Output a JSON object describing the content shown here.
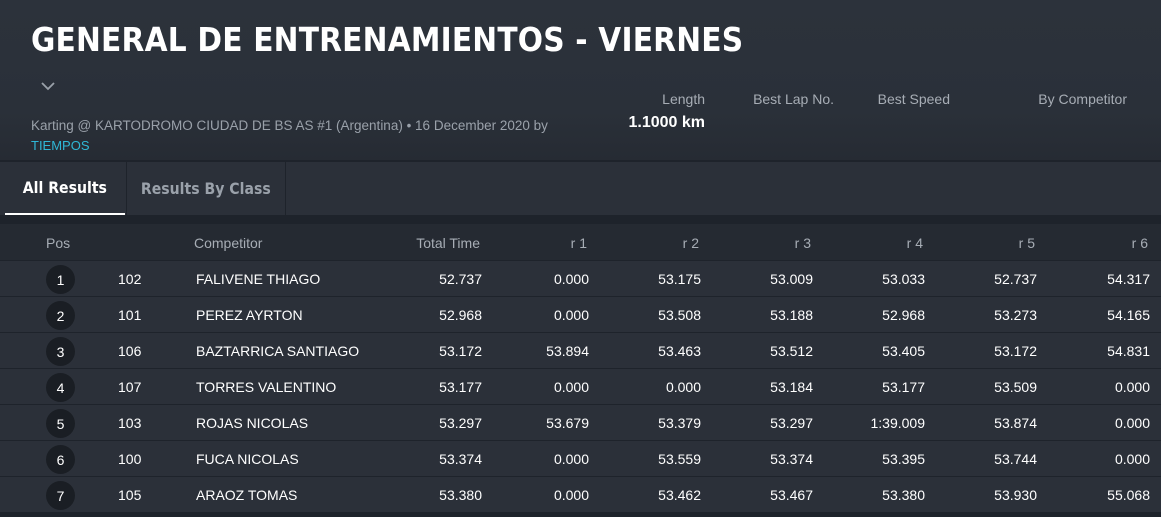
{
  "header": {
    "title": "GENERAL DE ENTRENAMIENTOS - VIERNES",
    "meta": "Karting @ KARTODROMO CIUDAD DE BS AS #1 (Argentina) • 16 December 2020 by",
    "organizer": "TIEMPOS",
    "stats": [
      {
        "label": "Length",
        "value": "1.1000 km"
      },
      {
        "label": "Best Lap No.",
        "value": ""
      },
      {
        "label": "Best Speed",
        "value": ""
      },
      {
        "label": "By Competitor",
        "value": ""
      }
    ]
  },
  "tabs": [
    {
      "label": "All Results",
      "active": true
    },
    {
      "label": "Results By Class",
      "active": false
    }
  ],
  "table": {
    "columns": [
      "Pos",
      "Competitor",
      "Total Time",
      "r 1",
      "r 2",
      "r 3",
      "r 4",
      "r 5",
      "r 6"
    ],
    "rows": [
      {
        "pos": "1",
        "no": "102",
        "name": "FALIVENE THIAGO",
        "total": "52.737",
        "r": [
          "0.000",
          "53.175",
          "53.009",
          "53.033",
          "52.737",
          "54.317"
        ]
      },
      {
        "pos": "2",
        "no": "101",
        "name": "PEREZ AYRTON",
        "total": "52.968",
        "r": [
          "0.000",
          "53.508",
          "53.188",
          "52.968",
          "53.273",
          "54.165"
        ]
      },
      {
        "pos": "3",
        "no": "106",
        "name": "BAZTARRICA SANTIAGO",
        "total": "53.172",
        "r": [
          "53.894",
          "53.463",
          "53.512",
          "53.405",
          "53.172",
          "54.831"
        ]
      },
      {
        "pos": "4",
        "no": "107",
        "name": "TORRES VALENTINO",
        "total": "53.177",
        "r": [
          "0.000",
          "0.000",
          "53.184",
          "53.177",
          "53.509",
          "0.000"
        ]
      },
      {
        "pos": "5",
        "no": "103",
        "name": "ROJAS NICOLAS",
        "total": "53.297",
        "r": [
          "53.679",
          "53.379",
          "53.297",
          "1:39.009",
          "53.874",
          "0.000"
        ]
      },
      {
        "pos": "6",
        "no": "100",
        "name": "FUCA NICOLAS",
        "total": "53.374",
        "r": [
          "0.000",
          "53.559",
          "53.374",
          "53.395",
          "53.744",
          "0.000"
        ]
      },
      {
        "pos": "7",
        "no": "105",
        "name": "ARAOZ TOMAS",
        "total": "53.380",
        "r": [
          "0.000",
          "53.462",
          "53.467",
          "53.380",
          "53.930",
          "55.068"
        ]
      }
    ]
  }
}
